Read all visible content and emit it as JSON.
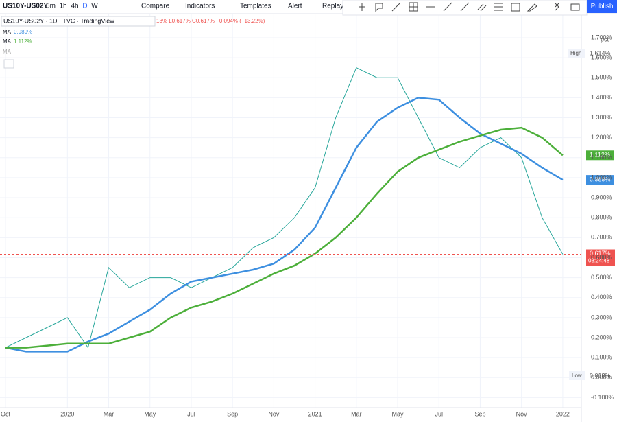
{
  "toolbar": {
    "symbol": "US10Y-US02Y",
    "intervals": [
      "5m",
      "1h",
      "4h",
      "D",
      "W"
    ],
    "buttons": [
      "Compare",
      "Indicators",
      "Templates",
      "Alert",
      "Replay"
    ],
    "publish": "Publish"
  },
  "legend": {
    "header": "US10Y-US02Y · 1D · TVC · TradingView",
    "ohlc": "13%  L0.617%  C0.617%  −0.094% (−13.22%)",
    "ma1_value": "0.989%",
    "ma2_value": "1.112%",
    "hidden_ma": "MA"
  },
  "price_scale": {
    "unit": "pct",
    "high_label": "High",
    "high_value": "1.614%",
    "low_label": "Low",
    "low_value": "0.018%",
    "ma2_tag": "1.112%",
    "ma1_tag": "0.989%",
    "last_tag": "0.617%",
    "countdown": "03:24:48"
  },
  "chart_data": {
    "type": "line",
    "x": [
      "2019-10",
      "2019-11",
      "2019-12",
      "2020-01",
      "2020-02",
      "2020-03",
      "2020-04",
      "2020-05",
      "2020-06",
      "2020-07",
      "2020-08",
      "2020-09",
      "2020-10",
      "2020-11",
      "2020-12",
      "2021-01",
      "2021-02",
      "2021-03",
      "2021-04",
      "2021-05",
      "2021-06",
      "2021-07",
      "2021-08",
      "2021-09",
      "2021-10",
      "2021-11",
      "2021-12",
      "2022-01"
    ],
    "series": [
      {
        "name": "US10Y-US02Y",
        "color": "#26a69a",
        "values": [
          0.15,
          0.2,
          0.25,
          0.3,
          0.15,
          0.55,
          0.45,
          0.5,
          0.5,
          0.45,
          0.5,
          0.55,
          0.65,
          0.7,
          0.8,
          0.95,
          1.3,
          1.55,
          1.5,
          1.5,
          1.3,
          1.1,
          1.05,
          1.15,
          1.2,
          1.1,
          0.8,
          0.617
        ]
      },
      {
        "name": "MA",
        "color": "#3d8fe0",
        "values": [
          0.15,
          0.13,
          0.13,
          0.13,
          0.18,
          0.22,
          0.28,
          0.34,
          0.42,
          0.48,
          0.5,
          0.52,
          0.54,
          0.57,
          0.64,
          0.75,
          0.95,
          1.15,
          1.28,
          1.35,
          1.4,
          1.39,
          1.3,
          1.22,
          1.17,
          1.12,
          1.05,
          0.989
        ]
      },
      {
        "name": "MA",
        "color": "#4caf3a",
        "values": [
          0.15,
          0.15,
          0.16,
          0.17,
          0.17,
          0.17,
          0.2,
          0.23,
          0.3,
          0.35,
          0.38,
          0.42,
          0.47,
          0.52,
          0.56,
          0.62,
          0.7,
          0.8,
          0.92,
          1.03,
          1.1,
          1.14,
          1.18,
          1.21,
          1.24,
          1.25,
          1.2,
          1.112
        ]
      }
    ],
    "xlim": [
      "2019-10",
      "2022-02"
    ],
    "xticks": [
      {
        "value": "2019-10",
        "label": "Oct"
      },
      {
        "value": "2020-01",
        "label": "2020"
      },
      {
        "value": "2020-03",
        "label": "Mar"
      },
      {
        "value": "2020-05",
        "label": "May"
      },
      {
        "value": "2020-07",
        "label": "Jul"
      },
      {
        "value": "2020-09",
        "label": "Sep"
      },
      {
        "value": "2020-11",
        "label": "Nov"
      },
      {
        "value": "2021-01",
        "label": "2021"
      },
      {
        "value": "2021-03",
        "label": "Mar"
      },
      {
        "value": "2021-05",
        "label": "May"
      },
      {
        "value": "2021-07",
        "label": "Jul"
      },
      {
        "value": "2021-09",
        "label": "Sep"
      },
      {
        "value": "2021-11",
        "label": "Nov"
      },
      {
        "value": "2022-01",
        "label": "2022"
      }
    ],
    "ylim": [
      -0.15,
      1.82
    ],
    "yticks": [
      {
        "value": -0.1,
        "label": "-0.100%"
      },
      {
        "value": 0,
        "label": "0.000%"
      },
      {
        "value": 0.1,
        "label": "0.100%"
      },
      {
        "value": 0.2,
        "label": "0.200%"
      },
      {
        "value": 0.3,
        "label": "0.300%"
      },
      {
        "value": 0.4,
        "label": "0.400%"
      },
      {
        "value": 0.5,
        "label": "0.500%"
      },
      {
        "value": 0.6,
        "label": "0.600%"
      },
      {
        "value": 0.7,
        "label": "0.700%"
      },
      {
        "value": 0.8,
        "label": "0.800%"
      },
      {
        "value": 0.9,
        "label": "0.900%"
      },
      {
        "value": 1.0,
        "label": "1.000%"
      },
      {
        "value": 1.1,
        "label": "1.100%"
      },
      {
        "value": 1.2,
        "label": "1.200%"
      },
      {
        "value": 1.3,
        "label": "1.300%"
      },
      {
        "value": 1.4,
        "label": "1.400%"
      },
      {
        "value": 1.5,
        "label": "1.500%"
      },
      {
        "value": 1.6,
        "label": "1.600%"
      },
      {
        "value": 1.7,
        "label": "1.700%"
      }
    ],
    "grid": true
  }
}
